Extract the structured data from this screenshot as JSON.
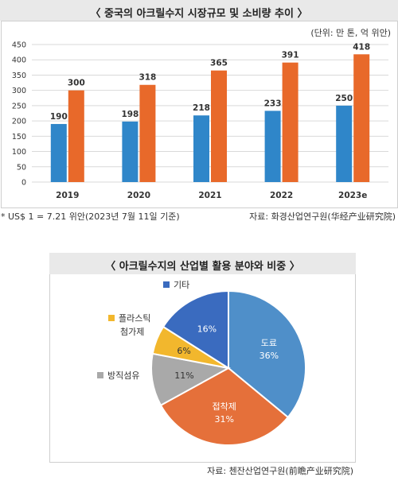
{
  "chart_data": [
    {
      "type": "bar",
      "title": "〈 중국의 아크릴수지 시장규모 및 소비량 추이 〉",
      "unit_note": "(단위: 만 톤, 억 위안)",
      "categories": [
        "2019",
        "2020",
        "2021",
        "2022",
        "2023e"
      ],
      "series": [
        {
          "values": [
            190,
            198,
            218,
            233,
            250
          ],
          "color": "#2f86c9"
        },
        {
          "values": [
            300,
            318,
            365,
            391,
            418
          ],
          "color": "#e8692a"
        }
      ],
      "ylim": [
        0,
        450
      ],
      "yticks": [
        "0",
        "50",
        "100",
        "150",
        "200",
        "250",
        "300",
        "350",
        "400",
        "450"
      ],
      "grid": true,
      "footnote": "* US$ 1 = 7.21 위안(2023년 7월 11일 기준)",
      "source": "자료: 화경산업연구원(华经产业研究院)"
    },
    {
      "type": "pie",
      "title": "〈 아크릴수지의 산업별 활용 분야와 비중 〉",
      "slices": [
        {
          "label": "도료",
          "value": 36,
          "value_label": "36%",
          "color": "#4f8fc9"
        },
        {
          "label": "접착제",
          "value": 31,
          "value_label": "31%",
          "color": "#e5703a"
        },
        {
          "label": "방직섬유",
          "value": 11,
          "value_label": "11%",
          "color": "#a9a9a9"
        },
        {
          "label": "플라스틱 첨가제",
          "value": 6,
          "value_label": "6%",
          "color": "#f2b72d"
        },
        {
          "label": "기타",
          "value": 16,
          "value_label": "16%",
          "color": "#3a6bbf"
        }
      ],
      "source": "자료: 첸잔산업연구원(前瞻产业研究院)"
    }
  ]
}
